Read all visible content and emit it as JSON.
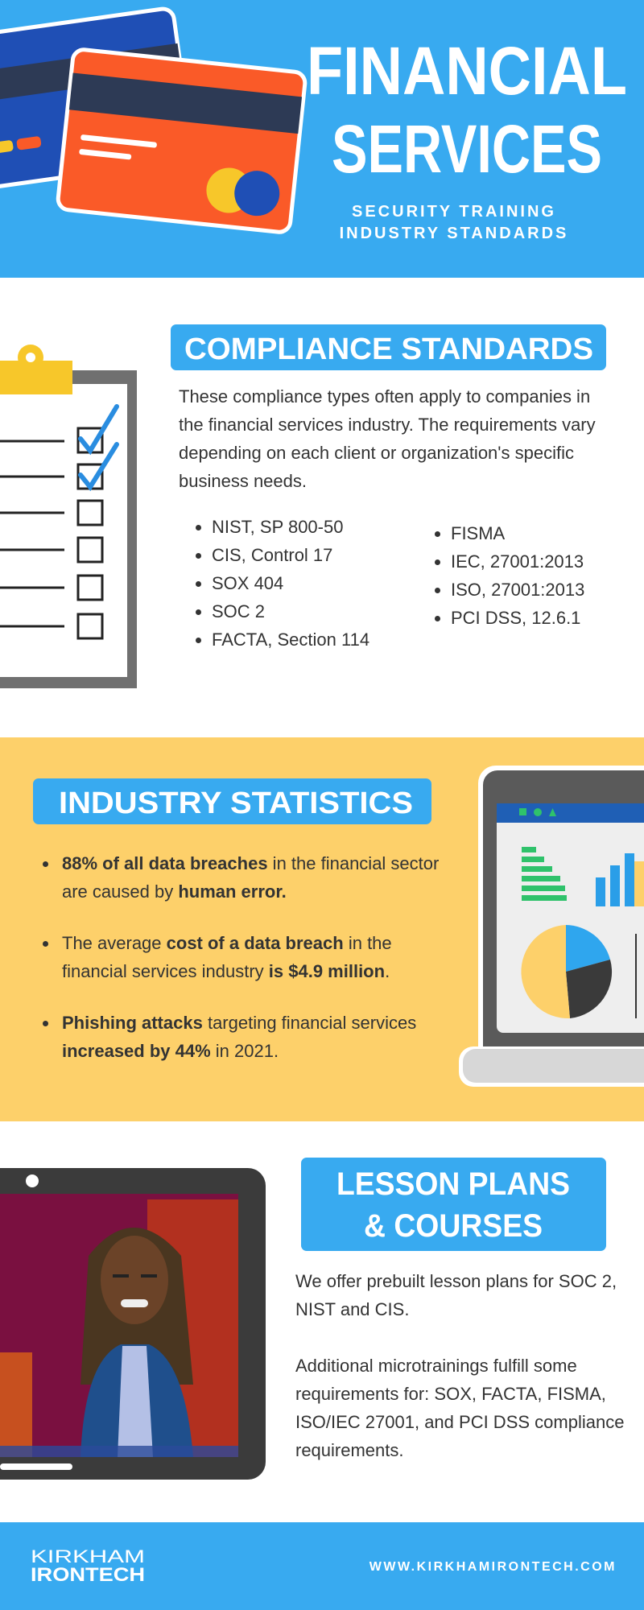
{
  "header": {
    "title": [
      "FINANCIAL",
      "SERVICES"
    ],
    "subtitle": [
      "SECURITY TRAINING",
      "INDUSTRY STANDARDS"
    ]
  },
  "compliance": {
    "title": "COMPLIANCE STANDARDS",
    "text": "These compliance types often apply to companies in the financial services industry. The requirements vary depending on each client or organization's specific business needs.",
    "list_left": [
      "NIST, SP 800-50",
      "CIS, Control 17",
      "SOX 404",
      "SOC 2",
      "FACTA, Section 114"
    ],
    "list_right": [
      "FISMA",
      "IEC, 27001:2013",
      "ISO, 27001:2013",
      "PCI DSS, 12.6.1"
    ]
  },
  "statistics": {
    "title": "INDUSTRY STATISTICS",
    "items": [
      [
        {
          "text": "88% of all data breaches",
          "bold": true
        },
        {
          "text": " in the financial sector are caused by "
        },
        {
          "text": "human error.",
          "bold": true
        }
      ],
      [
        {
          "text": "The average "
        },
        {
          "text": "cost of a data breach",
          "bold": true
        },
        {
          "text": " in the financial services industry "
        },
        {
          "text": "is $4.9 million",
          "bold": true
        },
        {
          "text": "."
        }
      ],
      [
        {
          "text": "Phishing attacks",
          "bold": true
        },
        {
          "text": " targeting financial services "
        },
        {
          "text": "increased by 44%",
          "bold": true
        },
        {
          "text": " in 2021."
        }
      ]
    ]
  },
  "lessons": {
    "title": [
      "LESSON PLANS",
      "& COURSES"
    ],
    "paragraphs": [
      "We offer prebuilt lesson plans for SOC 2, NIST and CIS.",
      "Additional microtrainings fulfill some requirements for: SOX, FACTA, FISMA, ISO/IEC 27001, and PCI DSS compliance requirements."
    ]
  },
  "footer": {
    "logo": [
      "KIRKHAM",
      "IRONTECH"
    ],
    "url": "WWW.KIRKHAMIRONTECH.COM"
  }
}
